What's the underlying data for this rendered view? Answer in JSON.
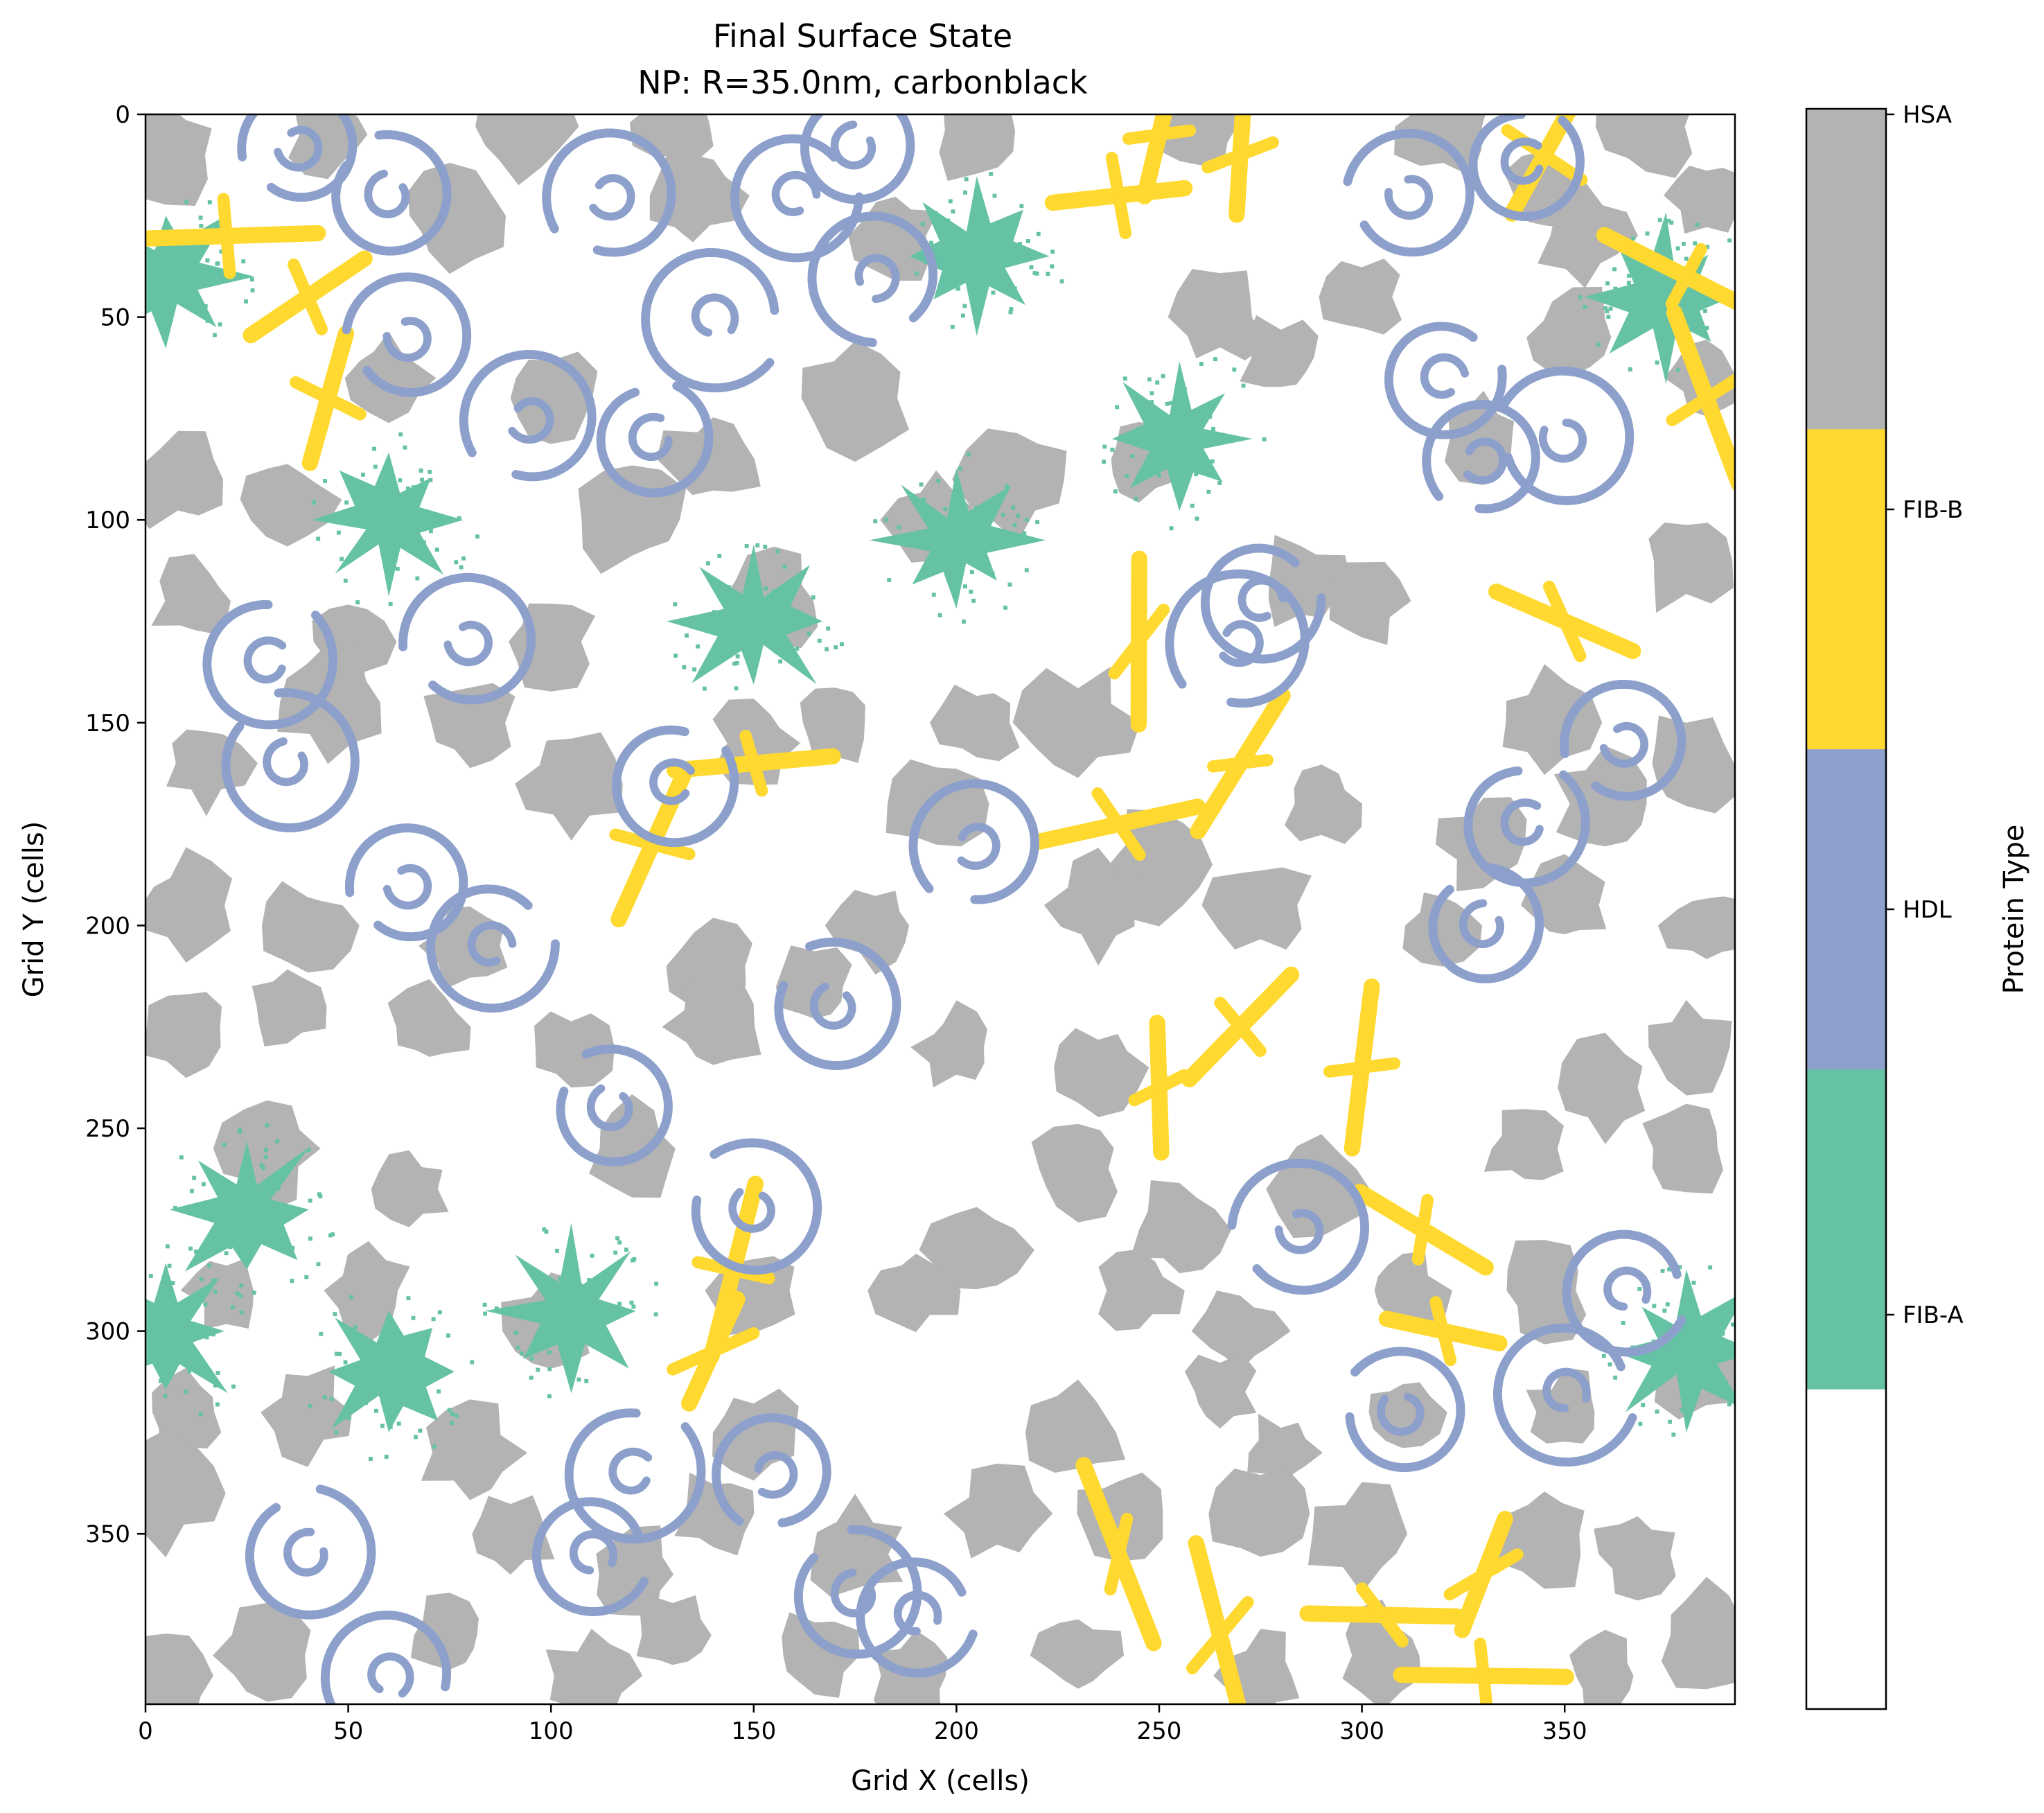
{
  "chart_data": {
    "type": "heatmap",
    "title": "Final Surface State",
    "subtitle": "NP: R=35.0nm, carbonblack",
    "xlabel": "Grid X (cells)",
    "ylabel": "Grid Y (cells)",
    "xlim": [
      0,
      392
    ],
    "ylim": [
      392,
      0
    ],
    "x_ticks": [
      0,
      50,
      100,
      150,
      200,
      250,
      300,
      350
    ],
    "y_ticks": [
      0,
      50,
      100,
      150,
      200,
      250,
      300,
      350
    ],
    "grid": false,
    "colorbar": {
      "label": "Protein Type",
      "categories": [
        {
          "value": 0,
          "name": "",
          "color": "#ffffff"
        },
        {
          "value": 1,
          "name": "FIB-A",
          "color": "#66c2a5"
        },
        {
          "value": 2,
          "name": "HDL",
          "color": "#8da0cb"
        },
        {
          "value": 3,
          "name": "FIB-B",
          "color": "#ffd92f"
        },
        {
          "value": 4,
          "name": "HSA",
          "color": "#b3b3b3"
        }
      ]
    },
    "proteins": {
      "HSA": [
        [
          5,
          10
        ],
        [
          45,
          5
        ],
        [
          92,
          3
        ],
        [
          130,
          2
        ],
        [
          205,
          4
        ],
        [
          260,
          3
        ],
        [
          320,
          3
        ],
        [
          370,
          3
        ],
        [
          385,
          20
        ],
        [
          75,
          25
        ],
        [
          135,
          20
        ],
        [
          185,
          30
        ],
        [
          345,
          20
        ],
        [
          355,
          30
        ],
        [
          60,
          65
        ],
        [
          100,
          70
        ],
        [
          140,
          85
        ],
        [
          175,
          70
        ],
        [
          265,
          50
        ],
        [
          300,
          45
        ],
        [
          352,
          55
        ],
        [
          385,
          65
        ],
        [
          8,
          90
        ],
        [
          35,
          95
        ],
        [
          120,
          100
        ],
        [
          195,
          100
        ],
        [
          215,
          90
        ],
        [
          245,
          85
        ],
        [
          280,
          60
        ],
        [
          330,
          80
        ],
        [
          12,
          120
        ],
        [
          50,
          130
        ],
        [
          100,
          130
        ],
        [
          155,
          120
        ],
        [
          285,
          115
        ],
        [
          300,
          120
        ],
        [
          345,
          150
        ],
        [
          380,
          110
        ],
        [
          15,
          160
        ],
        [
          45,
          145
        ],
        [
          80,
          150
        ],
        [
          105,
          165
        ],
        [
          150,
          155
        ],
        [
          170,
          150
        ],
        [
          205,
          150
        ],
        [
          230,
          150
        ],
        [
          195,
          170
        ],
        [
          250,
          185
        ],
        [
          290,
          170
        ],
        [
          330,
          180
        ],
        [
          360,
          170
        ],
        [
          380,
          160
        ],
        [
          10,
          195
        ],
        [
          40,
          200
        ],
        [
          80,
          205
        ],
        [
          140,
          210
        ],
        [
          180,
          200
        ],
        [
          235,
          195
        ],
        [
          275,
          195
        ],
        [
          320,
          200
        ],
        [
          350,
          195
        ],
        [
          385,
          200
        ],
        [
          10,
          225
        ],
        [
          35,
          220
        ],
        [
          70,
          225
        ],
        [
          105,
          230
        ],
        [
          140,
          225
        ],
        [
          165,
          215
        ],
        [
          200,
          230
        ],
        [
          235,
          235
        ],
        [
          360,
          240
        ],
        [
          380,
          230
        ],
        [
          30,
          255
        ],
        [
          65,
          265
        ],
        [
          120,
          255
        ],
        [
          230,
          260
        ],
        [
          255,
          275
        ],
        [
          290,
          265
        ],
        [
          340,
          255
        ],
        [
          380,
          255
        ],
        [
          20,
          290
        ],
        [
          55,
          290
        ],
        [
          100,
          300
        ],
        [
          150,
          290
        ],
        [
          190,
          290
        ],
        [
          205,
          280
        ],
        [
          245,
          290
        ],
        [
          270,
          300
        ],
        [
          310,
          290
        ],
        [
          345,
          290
        ],
        [
          10,
          320
        ],
        [
          40,
          320
        ],
        [
          80,
          330
        ],
        [
          150,
          325
        ],
        [
          230,
          325
        ],
        [
          265,
          315
        ],
        [
          280,
          330
        ],
        [
          310,
          320
        ],
        [
          350,
          320
        ],
        [
          385,
          310
        ],
        [
          5,
          340
        ],
        [
          90,
          350
        ],
        [
          120,
          360
        ],
        [
          140,
          345
        ],
        [
          175,
          355
        ],
        [
          210,
          345
        ],
        [
          240,
          345
        ],
        [
          275,
          345
        ],
        [
          300,
          350
        ],
        [
          345,
          350
        ],
        [
          368,
          355
        ],
        [
          5,
          385
        ],
        [
          30,
          380
        ],
        [
          75,
          375
        ],
        [
          110,
          385
        ],
        [
          130,
          375
        ],
        [
          165,
          380
        ],
        [
          190,
          385
        ],
        [
          230,
          380
        ],
        [
          275,
          385
        ],
        [
          305,
          380
        ],
        [
          360,
          385
        ],
        [
          385,
          375
        ]
      ],
      "HDL": [
        [
          38,
          8
        ],
        [
          175,
          8
        ],
        [
          60,
          20
        ],
        [
          115,
          20
        ],
        [
          160,
          20
        ],
        [
          312,
          20
        ],
        [
          340,
          12
        ],
        [
          65,
          55
        ],
        [
          140,
          50
        ],
        [
          180,
          40
        ],
        [
          320,
          65
        ],
        [
          330,
          85
        ],
        [
          95,
          75
        ],
        [
          125,
          80
        ],
        [
          350,
          80
        ],
        [
          30,
          135
        ],
        [
          80,
          130
        ],
        [
          275,
          120
        ],
        [
          270,
          130
        ],
        [
          35,
          160
        ],
        [
          130,
          165
        ],
        [
          205,
          180
        ],
        [
          365,
          155
        ],
        [
          340,
          175
        ],
        [
          65,
          190
        ],
        [
          85,
          205
        ],
        [
          170,
          220
        ],
        [
          330,
          200
        ],
        [
          115,
          245
        ],
        [
          150,
          270
        ],
        [
          285,
          275
        ],
        [
          310,
          320
        ],
        [
          365,
          290
        ],
        [
          40,
          355
        ],
        [
          110,
          355
        ],
        [
          120,
          335
        ],
        [
          155,
          335
        ],
        [
          175,
          365
        ],
        [
          190,
          370
        ],
        [
          60,
          385
        ],
        [
          350,
          315
        ]
      ],
      "FIB-A": [
        [
          5,
          40
        ],
        [
          205,
          35
        ],
        [
          375,
          45
        ],
        [
          255,
          80
        ],
        [
          60,
          100
        ],
        [
          200,
          105
        ],
        [
          150,
          125
        ],
        [
          25,
          270
        ],
        [
          105,
          295
        ],
        [
          60,
          310
        ],
        [
          380,
          305
        ],
        [
          5,
          300
        ]
      ],
      "FIB-B": [
        [
          20,
          30
        ],
        [
          40,
          45
        ],
        [
          45,
          70
        ],
        [
          240,
          20
        ],
        [
          270,
          10
        ],
        [
          345,
          10
        ],
        [
          380,
          40
        ],
        [
          385,
          70
        ],
        [
          245,
          130
        ],
        [
          350,
          125
        ],
        [
          150,
          160
        ],
        [
          125,
          180
        ],
        [
          240,
          175
        ],
        [
          270,
          160
        ],
        [
          270,
          225
        ],
        [
          300,
          235
        ],
        [
          250,
          240
        ],
        [
          145,
          285
        ],
        [
          140,
          305
        ],
        [
          315,
          275
        ],
        [
          320,
          300
        ],
        [
          240,
          355
        ],
        [
          265,
          375
        ],
        [
          305,
          370
        ],
        [
          330,
          360
        ],
        [
          330,
          385
        ],
        [
          250,
          5
        ]
      ]
    }
  }
}
